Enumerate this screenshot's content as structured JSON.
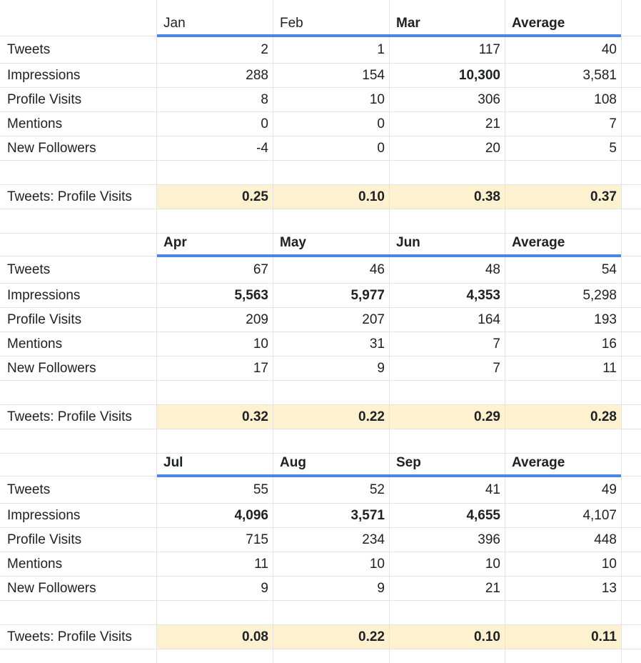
{
  "blocks": [
    {
      "headers": [
        {
          "text": "Jan",
          "bold": false
        },
        {
          "text": "Feb",
          "bold": false
        },
        {
          "text": "Mar",
          "bold": true
        },
        {
          "text": "Average",
          "bold": true
        }
      ],
      "rows": [
        {
          "label": "Tweets",
          "values": [
            "2",
            "1",
            "117",
            "40"
          ],
          "bold": [
            false,
            false,
            false,
            false
          ]
        },
        {
          "label": "Impressions",
          "values": [
            "288",
            "154",
            "10,300",
            "3,581"
          ],
          "bold": [
            false,
            false,
            true,
            false
          ]
        },
        {
          "label": "Profile Visits",
          "values": [
            "8",
            "10",
            "306",
            "108"
          ],
          "bold": [
            false,
            false,
            false,
            false
          ]
        },
        {
          "label": "Mentions",
          "values": [
            "0",
            "0",
            "21",
            "7"
          ],
          "bold": [
            false,
            false,
            false,
            false
          ]
        },
        {
          "label": "New Followers",
          "values": [
            "-4",
            "0",
            "20",
            "5"
          ],
          "bold": [
            false,
            false,
            false,
            false
          ]
        }
      ],
      "ratio": {
        "label": "Tweets: Profile Visits",
        "values": [
          "0.25",
          "0.10",
          "0.38",
          "0.37"
        ]
      }
    },
    {
      "headers": [
        {
          "text": "Apr",
          "bold": true
        },
        {
          "text": "May",
          "bold": true
        },
        {
          "text": "Jun",
          "bold": true
        },
        {
          "text": "Average",
          "bold": true
        }
      ],
      "rows": [
        {
          "label": "Tweets",
          "values": [
            "67",
            "46",
            "48",
            "54"
          ],
          "bold": [
            false,
            false,
            false,
            false
          ]
        },
        {
          "label": "Impressions",
          "values": [
            "5,563",
            "5,977",
            "4,353",
            "5,298"
          ],
          "bold": [
            true,
            true,
            true,
            false
          ]
        },
        {
          "label": "Profile Visits",
          "values": [
            "209",
            "207",
            "164",
            "193"
          ],
          "bold": [
            false,
            false,
            false,
            false
          ]
        },
        {
          "label": "Mentions",
          "values": [
            "10",
            "31",
            "7",
            "16"
          ],
          "bold": [
            false,
            false,
            false,
            false
          ]
        },
        {
          "label": "New Followers",
          "values": [
            "17",
            "9",
            "7",
            "11"
          ],
          "bold": [
            false,
            false,
            false,
            false
          ]
        }
      ],
      "ratio": {
        "label": "Tweets: Profile Visits",
        "values": [
          "0.32",
          "0.22",
          "0.29",
          "0.28"
        ]
      }
    },
    {
      "headers": [
        {
          "text": "Jul",
          "bold": true
        },
        {
          "text": "Aug",
          "bold": true
        },
        {
          "text": "Sep",
          "bold": true
        },
        {
          "text": "Average",
          "bold": true
        }
      ],
      "rows": [
        {
          "label": "Tweets",
          "values": [
            "55",
            "52",
            "41",
            "49"
          ],
          "bold": [
            false,
            false,
            false,
            false
          ]
        },
        {
          "label": "Impressions",
          "values": [
            "4,096",
            "3,571",
            "4,655",
            "4,107"
          ],
          "bold": [
            true,
            true,
            true,
            false
          ]
        },
        {
          "label": "Profile Visits",
          "values": [
            "715",
            "234",
            "396",
            "448"
          ],
          "bold": [
            false,
            false,
            false,
            false
          ]
        },
        {
          "label": "Mentions",
          "values": [
            "11",
            "10",
            "10",
            "10"
          ],
          "bold": [
            false,
            false,
            false,
            false
          ]
        },
        {
          "label": "New Followers",
          "values": [
            "9",
            "9",
            "21",
            "13"
          ],
          "bold": [
            false,
            false,
            false,
            false
          ]
        }
      ],
      "ratio": {
        "label": "Tweets: Profile Visits",
        "values": [
          "0.08",
          "0.22",
          "0.10",
          "0.11"
        ]
      }
    }
  ],
  "colors": {
    "header_rule": "#4a86e8",
    "ratio_highlight": "#fdf1cf",
    "gridline": "#e2e3e3"
  }
}
